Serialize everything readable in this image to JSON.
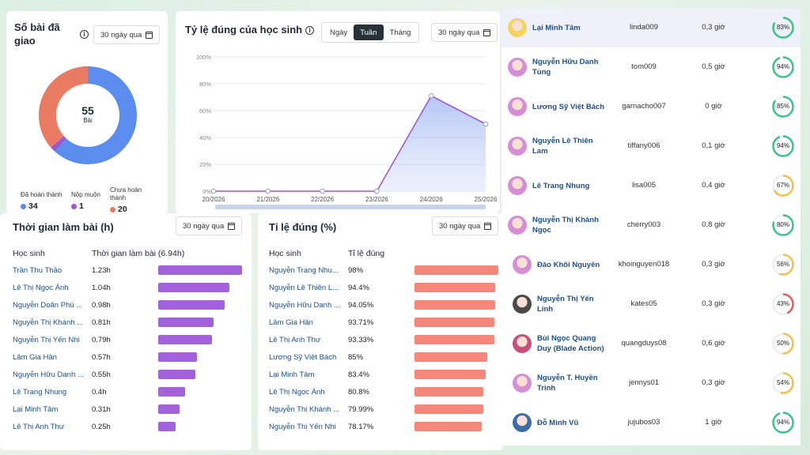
{
  "assigned": {
    "title": "Số bài đã giao",
    "range": "30 ngày qua",
    "total": "55",
    "unit": "Bài",
    "legend": [
      {
        "label": "Đã hoàn thành",
        "value": "34",
        "color": "#5b8def"
      },
      {
        "label": "Nộp muộn",
        "value": "1",
        "color": "#9b59d0"
      },
      {
        "label": "Chưa hoàn thành",
        "value": "20",
        "color": "#ea7b63"
      }
    ]
  },
  "accuracy_chart": {
    "title": "Tỷ lệ đúng của học sinh",
    "tabs": [
      "Ngày",
      "Tuần",
      "Tháng"
    ],
    "active_tab": "Tuần",
    "range": "30 ngày qua"
  },
  "chart_data": {
    "type": "area",
    "x": [
      "20/2026",
      "21/2026",
      "22/2026",
      "23/2026",
      "24/2026",
      "25/2026"
    ],
    "series": [
      {
        "values": [
          0,
          0,
          0,
          0,
          71,
          50
        ]
      }
    ],
    "yticks": [
      "0%",
      "20%",
      "40%",
      "60%",
      "80%",
      "100%"
    ],
    "ylim": [
      0,
      100
    ],
    "grid": true,
    "color": "#9b59d0"
  },
  "time_panel": {
    "title": "Thời gian làm bài (h)",
    "range": "30 ngày qua",
    "col_student": "Học sinh",
    "col_value": "Thời gian làm bài (6.94h)",
    "rows": [
      {
        "name": "Trần Thu Thảo",
        "value": "1.23h",
        "v": 1.23
      },
      {
        "name": "Lê Thị Ngọc Ánh",
        "value": "1.04h",
        "v": 1.04
      },
      {
        "name": "Nguyễn Doãn Phú ...",
        "value": "0.98h",
        "v": 0.98
      },
      {
        "name": "Nguyễn Thị Khánh ...",
        "value": "0.81h",
        "v": 0.81
      },
      {
        "name": "Nguyễn Thị Yến Nhi",
        "value": "0.79h",
        "v": 0.79
      },
      {
        "name": "Lâm Gia Hân",
        "value": "0.57h",
        "v": 0.57
      },
      {
        "name": "Nguyễn Hữu Danh ...",
        "value": "0.55h",
        "v": 0.55
      },
      {
        "name": "Lê Trang Nhung",
        "value": "0.4h",
        "v": 0.4
      },
      {
        "name": "Lại Minh Tâm",
        "value": "0.31h",
        "v": 0.31
      },
      {
        "name": "Lê Thị Anh Thư",
        "value": "0.25h",
        "v": 0.25
      }
    ]
  },
  "rate_panel": {
    "title": "Tỉ lệ đúng (%)",
    "range": "30 ngày qua",
    "col_student": "Học sinh",
    "col_value": "Tỉ lệ đúng",
    "rows": [
      {
        "name": "Nguyễn Trang Nhu...",
        "value": "98%",
        "v": 98
      },
      {
        "name": "Nguyễn Lê Thiên L...",
        "value": "94.4%",
        "v": 94.4
      },
      {
        "name": "Nguyễn Hữu Danh ...",
        "value": "94.05%",
        "v": 94.05
      },
      {
        "name": "Lâm Gia Hân",
        "value": "93.71%",
        "v": 93.71
      },
      {
        "name": "Lê Thị Anh Thư",
        "value": "93.33%",
        "v": 93.33
      },
      {
        "name": "Lương Sỹ Việt Bách",
        "value": "85%",
        "v": 85
      },
      {
        "name": "Lại Minh Tâm",
        "value": "83.4%",
        "v": 83.4
      },
      {
        "name": "Lê Thị Ngọc Ánh",
        "value": "80.8%",
        "v": 80.8
      },
      {
        "name": "Nguyễn Thị Khánh ...",
        "value": "79.99%",
        "v": 79.99
      },
      {
        "name": "Nguyễn Thị Yến Nhi",
        "value": "78.17%",
        "v": 78.17
      }
    ]
  },
  "students": [
    {
      "name": "Lại Minh Tâm",
      "user": "linda009",
      "time": "0,3 giờ",
      "pct": "83%",
      "p": 83,
      "avatar": "#f4d35e"
    },
    {
      "name": "Nguyễn Hữu Danh Tùng",
      "user": "tom009",
      "time": "0,5 giờ",
      "pct": "94%",
      "p": 94,
      "avatar": "#d68fd6"
    },
    {
      "name": "Lương Sỹ Việt Bách",
      "user": "garnacho007",
      "time": "0 giờ",
      "pct": "85%",
      "p": 85,
      "avatar": "#d68fd6"
    },
    {
      "name": "Nguyễn Lê Thiên Lam",
      "user": "tiffany006",
      "time": "0,1 giờ",
      "pct": "94%",
      "p": 94,
      "avatar": "#d68fd6"
    },
    {
      "name": "Lê Trang Nhung",
      "user": "lisa005",
      "time": "0,4 giờ",
      "pct": "67%",
      "p": 67,
      "avatar": "#d68fd6"
    },
    {
      "name": "Nguyễn Thị Khánh Ngọc",
      "user": "cherry003",
      "time": "0,8 giờ",
      "pct": "80%",
      "p": 80,
      "avatar": "#d68fd6"
    },
    {
      "name": "Đào Khôi Nguyên",
      "user": "khoinguyen018",
      "time": "0,3 giờ",
      "pct": "56%",
      "p": 56,
      "avatar": "#d68fd6"
    },
    {
      "name": "Nguyễn Thị Yến Linh",
      "user": "kates05",
      "time": "0,3 giờ",
      "pct": "43%",
      "p": 43,
      "avatar": "#4a4a4a"
    },
    {
      "name": "Bùi Ngọc Quang Duy (Blade Action)",
      "user": "quangduys08",
      "time": "0,6 giờ",
      "pct": "50%",
      "p": 50,
      "avatar": "#c94f7c"
    },
    {
      "name": "Nguyễn T. Huyền Trinh",
      "user": "jennys01",
      "time": "0,3 giờ",
      "pct": "54%",
      "p": 54,
      "avatar": "#d68fd6"
    },
    {
      "name": "Đỗ Minh Vũ",
      "user": "jujubos03",
      "time": "1 giờ",
      "pct": "94%",
      "p": 94,
      "avatar": "#3b6ea8"
    }
  ]
}
